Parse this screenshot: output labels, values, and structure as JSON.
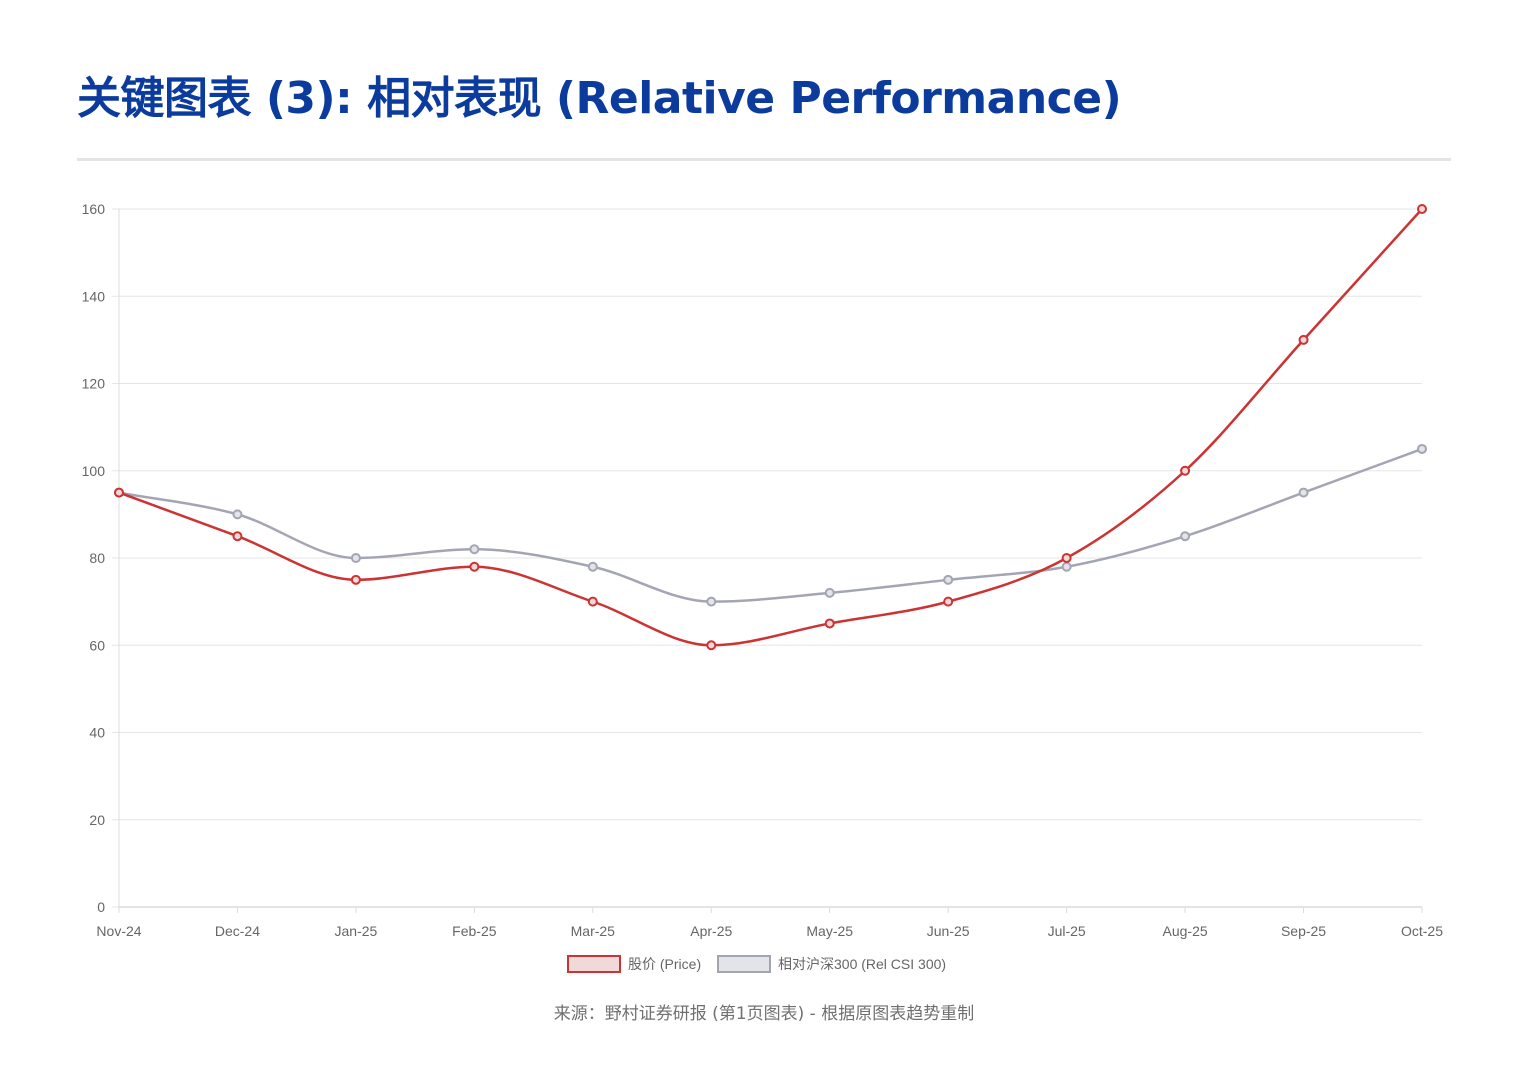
{
  "page": {
    "title": "关键图表 (3): 相对表现 (Relative Performance)",
    "source_note": "来源：野村证券研报 (第1页图表) - 根据原图表趋势重制"
  },
  "colors": {
    "title": "#0b3b9c",
    "price": "#cc3333",
    "price_fill": "#f2d9d9",
    "index": "#a3a5b3",
    "index_fill": "#e3e4ea",
    "grid": "#e6e6e6",
    "axis_text": "#666666"
  },
  "chart_data": {
    "type": "line",
    "title": "",
    "xlabel": "",
    "ylabel": "",
    "ylim": [
      0,
      160
    ],
    "yticks": [
      0,
      20,
      40,
      60,
      80,
      100,
      120,
      140,
      160
    ],
    "categories": [
      "Nov-24",
      "Dec-24",
      "Jan-25",
      "Feb-25",
      "Mar-25",
      "Apr-25",
      "May-25",
      "Jun-25",
      "Jul-25",
      "Aug-25",
      "Sep-25",
      "Oct-25"
    ],
    "grid": true,
    "legend_position": "bottom",
    "series": [
      {
        "name": "股价 (Price)",
        "key": "price",
        "values": [
          95,
          85,
          75,
          78,
          70,
          60,
          65,
          70,
          80,
          100,
          130,
          160
        ]
      },
      {
        "name": "相对沪深300 (Rel CSI 300)",
        "key": "index",
        "values": [
          95,
          90,
          80,
          82,
          78,
          70,
          72,
          75,
          78,
          85,
          95,
          105
        ]
      }
    ]
  }
}
